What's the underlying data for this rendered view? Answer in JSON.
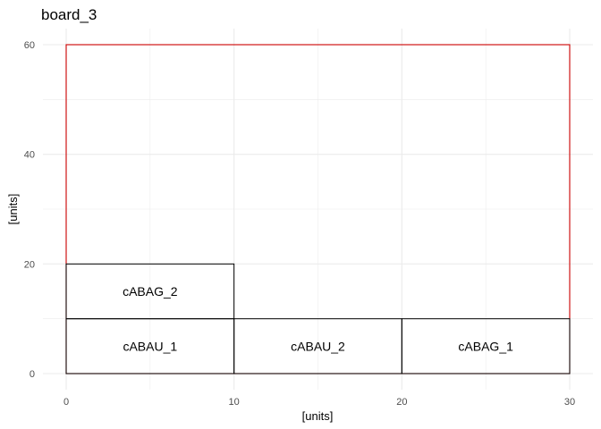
{
  "chart_data": {
    "type": "layout",
    "title": "board_3",
    "xlabel": "[units]",
    "ylabel": "[units]",
    "xlim": [
      0,
      30
    ],
    "ylim": [
      0,
      60
    ],
    "x_ticks": [
      0,
      10,
      20,
      30
    ],
    "y_ticks": [
      0,
      20,
      40,
      60
    ],
    "grid": true,
    "board": {
      "x": 0,
      "y": 0,
      "width": 30,
      "height": 60,
      "color": "#cc0000"
    },
    "pieces": [
      {
        "label": "cABAG_2",
        "x": 0,
        "y": 10,
        "width": 10,
        "height": 10
      },
      {
        "label": "cABAU_1",
        "x": 0,
        "y": 0,
        "width": 10,
        "height": 10
      },
      {
        "label": "cABAU_2",
        "x": 10,
        "y": 0,
        "width": 10,
        "height": 10
      },
      {
        "label": "cABAG_1",
        "x": 20,
        "y": 0,
        "width": 10,
        "height": 10
      }
    ],
    "colors": {
      "board_outline": "#cc0000",
      "piece_outline": "#000000",
      "grid": "#ebebeb"
    }
  }
}
